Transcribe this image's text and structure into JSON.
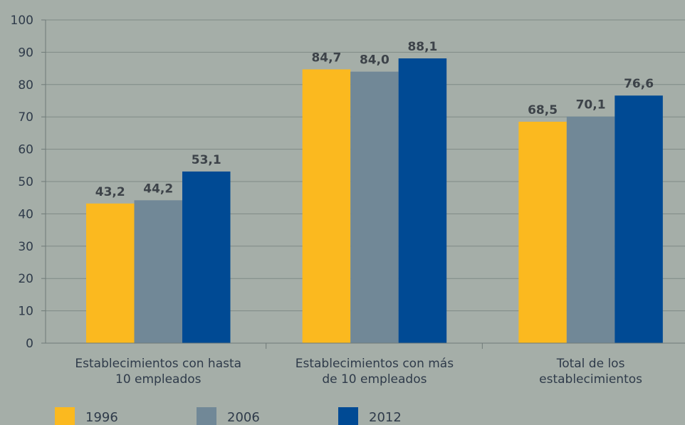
{
  "chart_data": {
    "type": "bar",
    "categories": [
      [
        "Establecimientos con hasta",
        "10 empleados"
      ],
      [
        "Establecimientos con más",
        "de 10 empleados"
      ],
      [
        "Total de los",
        "establecimientos"
      ]
    ],
    "series": [
      {
        "name": "1996",
        "values": [
          43.2,
          84.7,
          68.5
        ],
        "labels": [
          "43,2",
          "84,7",
          "68,5"
        ],
        "color": "#fbb91f"
      },
      {
        "name": "2006",
        "values": [
          44.2,
          84.0,
          70.1
        ],
        "labels": [
          "44,2",
          "84,0",
          "70,1"
        ],
        "color": "#718897"
      },
      {
        "name": "2012",
        "values": [
          53.1,
          88.1,
          76.6
        ],
        "labels": [
          "53,1",
          "88,1",
          "76,6"
        ],
        "color": "#004a94"
      }
    ],
    "ylim": [
      0,
      100
    ],
    "yticks": [
      0,
      10,
      20,
      30,
      40,
      50,
      60,
      70,
      80,
      90,
      100
    ],
    "grid": true,
    "legend_position": "bottom",
    "colors": {
      "background": "#a5aea8",
      "grid": "#7f8a86",
      "axis": "#6f7a78",
      "text": "#2f3b4a"
    }
  }
}
